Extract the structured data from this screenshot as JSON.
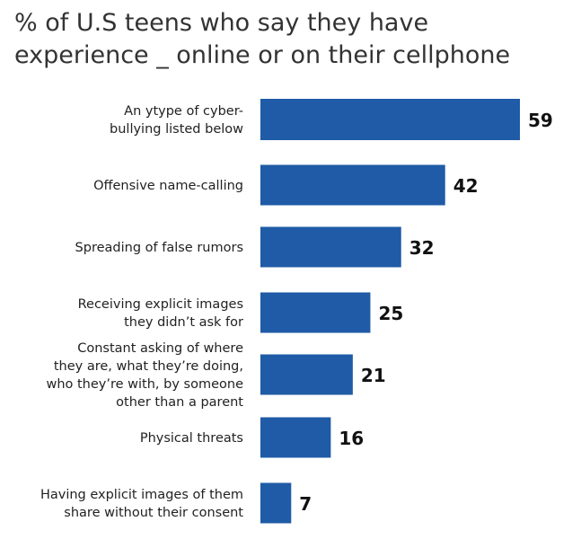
{
  "title_lines": [
    "% of U.S teens who say they have",
    "experience _ online or on their cellphone"
  ],
  "colors": {
    "bar": "#1f5ba6",
    "text": "#222222"
  },
  "chart_data": {
    "type": "bar",
    "orientation": "horizontal",
    "title": "% of U.S teens who say they have experience _ online or on their cellphone",
    "categories": [
      [
        "An ytype of cyber-",
        "bullying listed below"
      ],
      [
        "Offensive name-calling"
      ],
      [
        "Spreading of false rumors"
      ],
      [
        "Receiving explicit images",
        "they didn’t ask for"
      ],
      [
        "Constant asking of where",
        "they are, what they’re doing,",
        "who they’re with, by someone",
        "other than a parent"
      ],
      [
        "Physical threats"
      ],
      [
        "Having explicit images of them",
        "share without their consent"
      ]
    ],
    "values": [
      59,
      42,
      32,
      25,
      21,
      16,
      7
    ],
    "data_labels": [
      "59",
      "42",
      "32",
      "25",
      "21",
      "16",
      "7"
    ],
    "xlim": [
      0,
      59
    ],
    "grid": false,
    "legend": "none"
  }
}
